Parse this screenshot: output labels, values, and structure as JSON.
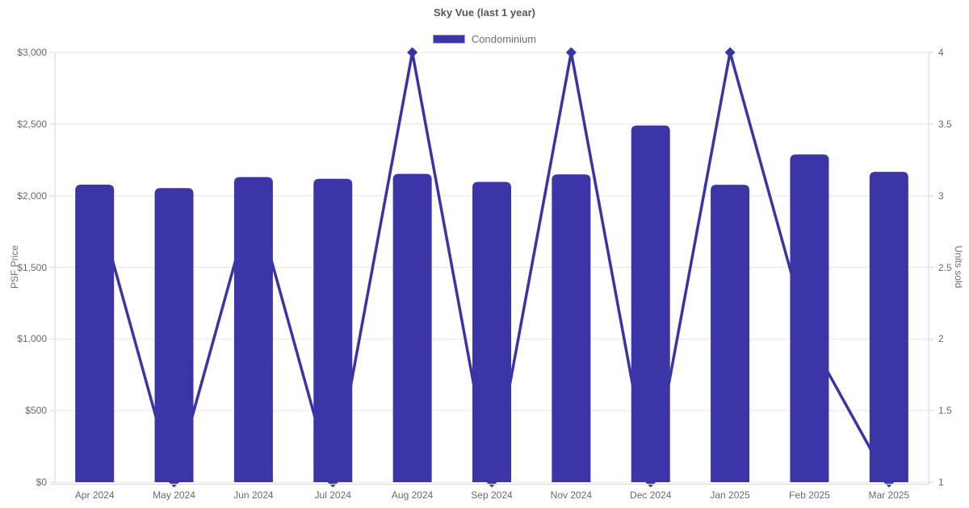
{
  "chart_data": {
    "type": "bar",
    "subtype": "combo-bar-line",
    "title": "Sky Vue (last 1 year)",
    "legend": [
      {
        "label": "Condominium",
        "color": "#3b35a7"
      }
    ],
    "legend_position": "top-center",
    "grid": "horizontal-only",
    "categories": [
      "Apr 2024",
      "May 2024",
      "Jun 2024",
      "Jul 2024",
      "Aug 2024",
      "Sep 2024",
      "Nov 2024",
      "Dec 2024",
      "Jan 2025",
      "Feb 2025",
      "Mar 2025"
    ],
    "series": [
      {
        "name": "PSF Price",
        "type": "bar",
        "axis": "left",
        "values": [
          2077,
          2053,
          2130,
          2118,
          2152,
          2096,
          2149,
          2490,
          2076,
          2288,
          2166
        ]
      },
      {
        "name": "Units sold",
        "type": "line",
        "axis": "right",
        "point_style": "diamond",
        "values": [
          3,
          1,
          3,
          1,
          4,
          1,
          4,
          1,
          4,
          2,
          1
        ]
      }
    ],
    "left_axis": {
      "label": "PSF Price",
      "min": 0,
      "max": 3000,
      "tick_labels": [
        "$0",
        "$500",
        "$1,000",
        "$1,500",
        "$2,000",
        "$2,500",
        "$3,000"
      ],
      "tick_values": [
        0,
        500,
        1000,
        1500,
        2000,
        2500,
        3000
      ]
    },
    "right_axis": {
      "label": "Units sold",
      "min": 1,
      "max": 4,
      "tick_labels": [
        "1",
        "1.5",
        "2",
        "2.5",
        "3",
        "3.5",
        "4"
      ],
      "tick_values": [
        1,
        1.5,
        2,
        2.5,
        3,
        3.5,
        4
      ]
    },
    "colors": {
      "bar": "#3b35a7",
      "line": "#3a34a4",
      "marker": "#3a34a4",
      "grid_line": "#e9e9eb",
      "axis_line": "#dddde0",
      "tick_text": "#66696e",
      "axis_title_text": "#6e7177",
      "title_text": "#55585e",
      "background": "#ffffff"
    }
  }
}
